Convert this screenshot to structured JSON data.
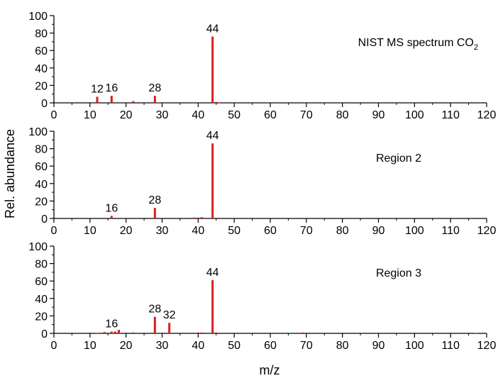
{
  "figure": {
    "ylabel": "Rel. abundance",
    "xlabel": "m/z"
  },
  "colors": {
    "bar": "#d71e1e",
    "axis": "#000000",
    "background": "#ffffff"
  },
  "chart_data": [
    {
      "type": "bar",
      "title": "NIST MS spectrum CO",
      "title_subscript": "2",
      "title_placement": "top-right",
      "xlim": [
        0,
        120
      ],
      "ylim": [
        0,
        100
      ],
      "x_ticks": [
        0,
        10,
        20,
        30,
        40,
        50,
        60,
        70,
        80,
        90,
        100,
        110,
        120
      ],
      "x_tick_labels": [
        "0",
        "10",
        "20",
        "30",
        "40",
        "50",
        "60",
        "70",
        "80",
        "90",
        "100",
        "110",
        "120"
      ],
      "y_ticks": [
        0,
        20,
        40,
        60,
        80,
        100
      ],
      "y_tick_labels": [
        "0",
        "20",
        "40",
        "60",
        "80",
        "100"
      ],
      "grid": false,
      "peaks": [
        {
          "x": 12,
          "y": 7
        },
        {
          "x": 16,
          "y": 8
        },
        {
          "x": 22,
          "y": 2
        },
        {
          "x": 28,
          "y": 8
        },
        {
          "x": 29,
          "y": 0.5
        },
        {
          "x": 44,
          "y": 76
        },
        {
          "x": 45,
          "y": 1
        },
        {
          "x": 46,
          "y": 0.5
        }
      ],
      "peak_labels": [
        {
          "x": 12,
          "text": "12"
        },
        {
          "x": 16,
          "text": "16"
        },
        {
          "x": 28,
          "text": "28"
        },
        {
          "x": 44,
          "text": "44"
        }
      ]
    },
    {
      "type": "bar",
      "title": "Region 2",
      "title_placement": "top-right",
      "xlim": [
        0,
        120
      ],
      "ylim": [
        0,
        100
      ],
      "x_ticks": [
        0,
        10,
        20,
        30,
        40,
        50,
        60,
        70,
        80,
        90,
        100,
        110,
        120
      ],
      "x_tick_labels": [
        "0",
        "10",
        "20",
        "30",
        "40",
        "50",
        "60",
        "70",
        "80",
        "90",
        "100",
        "110",
        "120"
      ],
      "y_ticks": [
        0,
        20,
        40,
        60,
        80,
        100
      ],
      "y_tick_labels": [
        "0",
        "20",
        "40",
        "60",
        "80",
        "100"
      ],
      "grid": false,
      "peaks": [
        {
          "x": 16,
          "y": 3
        },
        {
          "x": 28,
          "y": 12
        },
        {
          "x": 39,
          "y": 1
        },
        {
          "x": 40,
          "y": 1
        },
        {
          "x": 41,
          "y": 1.5
        },
        {
          "x": 44,
          "y": 86
        }
      ],
      "peak_labels": [
        {
          "x": 16,
          "text": "16"
        },
        {
          "x": 28,
          "text": "28"
        },
        {
          "x": 44,
          "text": "44"
        }
      ]
    },
    {
      "type": "bar",
      "title": "Region 3",
      "title_placement": "top-right",
      "xlim": [
        0,
        120
      ],
      "ylim": [
        0,
        100
      ],
      "x_ticks": [
        0,
        10,
        20,
        30,
        40,
        50,
        60,
        70,
        80,
        90,
        100,
        110,
        120
      ],
      "x_tick_labels": [
        "0",
        "10",
        "20",
        "30",
        "40",
        "50",
        "60",
        "70",
        "80",
        "90",
        "100",
        "110",
        "120"
      ],
      "y_ticks": [
        0,
        20,
        40,
        60,
        80,
        100
      ],
      "y_tick_labels": [
        "0",
        "20",
        "40",
        "60",
        "80",
        "100"
      ],
      "grid": false,
      "peaks": [
        {
          "x": 12,
          "y": 0.5
        },
        {
          "x": 14,
          "y": 1.5
        },
        {
          "x": 16,
          "y": 2
        },
        {
          "x": 17,
          "y": 2
        },
        {
          "x": 18,
          "y": 4
        },
        {
          "x": 22,
          "y": 1
        },
        {
          "x": 28,
          "y": 19
        },
        {
          "x": 32,
          "y": 12
        },
        {
          "x": 40,
          "y": 1
        },
        {
          "x": 41,
          "y": 1
        },
        {
          "x": 44,
          "y": 61
        },
        {
          "x": 45,
          "y": 1
        },
        {
          "x": 69,
          "y": 1
        },
        {
          "x": 117,
          "y": 0.5
        }
      ],
      "peak_labels": [
        {
          "x": 16,
          "text": "16"
        },
        {
          "x": 28,
          "text": "28"
        },
        {
          "x": 32,
          "text": "32"
        },
        {
          "x": 44,
          "text": "44"
        }
      ]
    }
  ]
}
